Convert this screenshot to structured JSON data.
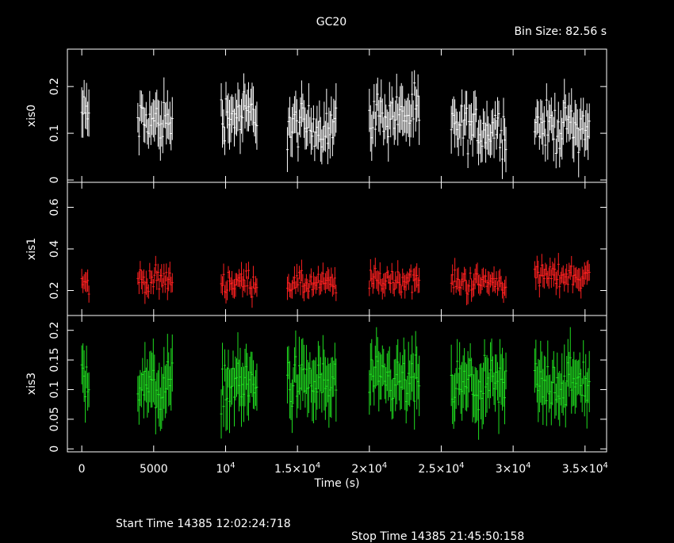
{
  "chart_data": {
    "type": "scatter",
    "title": "GC20",
    "subtitle": "Bin Size: 82.56 s",
    "xlabel": "Time (s)",
    "xlim": [
      -1000,
      36500
    ],
    "x_ticks": [
      {
        "value": 0,
        "label": "0"
      },
      {
        "value": 5000,
        "label": "5000"
      },
      {
        "value": 10000,
        "label": "10",
        "exp": "4"
      },
      {
        "value": 15000,
        "label": "1.5×10",
        "exp": "4"
      },
      {
        "value": 20000,
        "label": "2×10",
        "exp": "4"
      },
      {
        "value": 25000,
        "label": "2.5×10",
        "exp": "4"
      },
      {
        "value": 30000,
        "label": "3×10",
        "exp": "4"
      },
      {
        "value": 35000,
        "label": "3.5×10",
        "exp": "4"
      }
    ],
    "segments": [
      [
        0,
        500
      ],
      [
        3900,
        6300
      ],
      [
        9700,
        12200
      ],
      [
        14300,
        17700
      ],
      [
        20000,
        23500
      ],
      [
        25700,
        29500
      ],
      [
        31500,
        35300
      ]
    ],
    "panels": [
      {
        "ylabel": "xis0",
        "color": "#ffffff",
        "ylim": [
          -0.005,
          0.28
        ],
        "ticks": [
          0,
          0.1,
          0.2
        ],
        "tick_labels": [
          "0",
          "0.1",
          "0.2"
        ],
        "levels": [
          0.14,
          0.125,
          0.14,
          0.115,
          0.14,
          0.11,
          0.115
        ],
        "spread": 0.035,
        "err": 0.045
      },
      {
        "ylabel": "xis1",
        "color": "#ff2020",
        "ylim": [
          0.08,
          0.72
        ],
        "ticks": [
          0.2,
          0.4,
          0.6
        ],
        "tick_labels": [
          "0.2",
          "0.4",
          "0.6"
        ],
        "levels": [
          0.23,
          0.25,
          0.24,
          0.23,
          0.25,
          0.24,
          0.27
        ],
        "spread": 0.04,
        "err": 0.05
      },
      {
        "ylabel": "xis3",
        "color": "#20e020",
        "ylim": [
          -0.005,
          0.225
        ],
        "ticks": [
          0,
          0.05,
          0.1,
          0.15,
          0.2
        ],
        "tick_labels": [
          "0",
          "0.05",
          "0.1",
          "0.15",
          "0.2"
        ],
        "levels": [
          0.12,
          0.105,
          0.11,
          0.11,
          0.11,
          0.105,
          0.11
        ],
        "spread": 0.03,
        "err": 0.045
      }
    ]
  },
  "footer": {
    "start": "Start Time 14385 12:02:24:718",
    "stop": "Stop Time 14385 21:45:50:158"
  }
}
